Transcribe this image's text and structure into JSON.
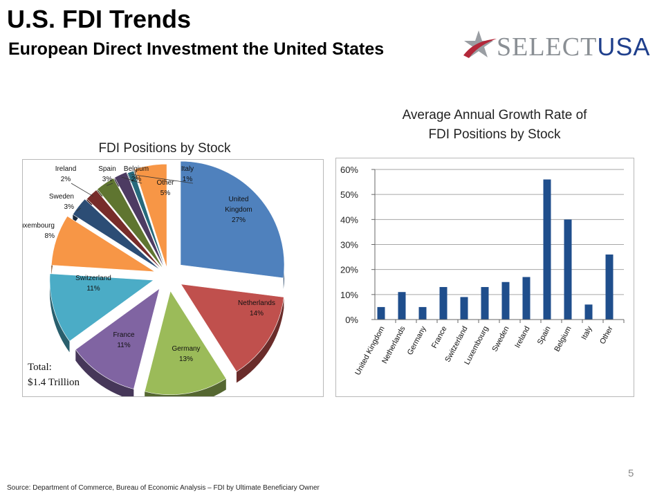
{
  "header": {
    "title": "U.S. FDI Trends",
    "subtitle": "European Direct Investment the United States"
  },
  "logo": {
    "part1": "SELECT",
    "part2": "USA",
    "star_color": "#9a9ea3",
    "swoosh_color": "#b3283a"
  },
  "pie_title": "FDI Positions by Stock",
  "bar_title_line1": "Average Annual Growth Rate of",
  "bar_title_line2": "FDI Positions by Stock",
  "total_label": "Total:",
  "total_value": "$1.4 Trillion",
  "page_number": "5",
  "source": "Source: Department of Commerce, Bureau of Economic Analysis – FDI by Ultimate  Beneficiary Owner",
  "chart_data": [
    {
      "type": "pie",
      "title": "FDI Positions by Stock",
      "slices": [
        {
          "name": "United Kingdom",
          "line1": "United",
          "line2": "Kingdom",
          "pct_label": "27%",
          "value": 27,
          "color": "#4f81bd"
        },
        {
          "name": "Netherlands",
          "line1": "Netherlands",
          "line2": "",
          "pct_label": "14%",
          "value": 14,
          "color": "#c0504d"
        },
        {
          "name": "Germany",
          "line1": "Germany",
          "line2": "",
          "pct_label": "13%",
          "value": 13,
          "color": "#9bbb59"
        },
        {
          "name": "France",
          "line1": "France",
          "line2": "",
          "pct_label": "11%",
          "value": 11,
          "color": "#8064a2"
        },
        {
          "name": "Switzerland",
          "line1": "Switzerland",
          "line2": "",
          "pct_label": "11%",
          "value": 11,
          "color": "#4bacc6"
        },
        {
          "name": "Luxembourg",
          "line1": "Luxembourg",
          "line2": "",
          "pct_label": "8%",
          "value": 8,
          "color": "#f79646"
        },
        {
          "name": "Sweden",
          "line1": "Sweden",
          "line2": "",
          "pct_label": "3%",
          "value": 3,
          "color": "#2c4d75"
        },
        {
          "name": "Ireland",
          "line1": "Ireland",
          "line2": "",
          "pct_label": "2%",
          "value": 2,
          "color": "#772c2a"
        },
        {
          "name": "Spain",
          "line1": "Spain",
          "line2": "",
          "pct_label": "3%",
          "value": 3,
          "color": "#5f7530"
        },
        {
          "name": "Belgium",
          "line1": "Belgium",
          "line2": "",
          "pct_label": "2%",
          "value": 2,
          "color": "#4d3b62"
        },
        {
          "name": "Italy",
          "line1": "Italy",
          "line2": "",
          "pct_label": "1%",
          "value": 1,
          "color": "#276a7c"
        },
        {
          "name": "Other",
          "line1": "Other",
          "line2": "",
          "pct_label": "5%",
          "value": 5,
          "color": "#f79646"
        }
      ]
    },
    {
      "type": "bar",
      "title": "Average Annual Growth Rate of FDI Positions by Stock",
      "categories": [
        "United Kingdom",
        "Netherlands",
        "Germany",
        "France",
        "Switzerland",
        "Luxembourg",
        "Sweden",
        "Ireland",
        "Spain",
        "Belgium",
        "Italy",
        "Other"
      ],
      "values": [
        5,
        11,
        5,
        13,
        9,
        13,
        15,
        17,
        56,
        40,
        6,
        26
      ],
      "ylim": [
        0,
        60
      ],
      "yticks": [
        "0%",
        "10%",
        "20%",
        "30%",
        "40%",
        "50%",
        "60%"
      ],
      "bar_color": "#1f4e8c",
      "grid": true
    }
  ]
}
